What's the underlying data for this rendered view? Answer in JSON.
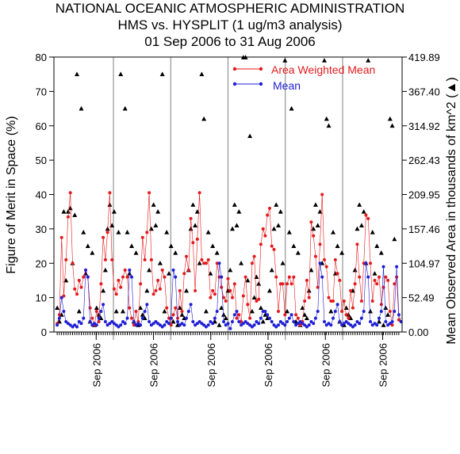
{
  "chart_data": {
    "type": "line",
    "title": [
      "NATIONAL OCEANIC ATMOSPHERIC ADMINISTRATION",
      "HMS vs. HYSPLIT (1 ug/m3 analysis)",
      "01 Sep 2006 to 31 Aug 2006"
    ],
    "ylabel_left": "Figure of Merit in Space (%)",
    "ylabel_right": "Mean Observed Area in thousands of km^2 (▲)",
    "ylim_left": [
      0,
      80
    ],
    "yticks_left": [
      "0",
      "10",
      "20",
      "30",
      "40",
      "50",
      "60",
      "70",
      "80"
    ],
    "yticks_right": [
      "0.00",
      "52.49",
      "104.97",
      "157.46",
      "209.95",
      "262.43",
      "314.92",
      "367.40",
      "419.89"
    ],
    "xtick_label": "Sep 2006",
    "legend_position": "top-right",
    "colors": {
      "awm": "#e41a1c",
      "mean": "#1f1fd6",
      "area": "#000000",
      "separator": "#808080"
    },
    "series": [
      {
        "name": "Area Weighted Mean",
        "color": "#e41a1c",
        "values": [
          2.5,
          5,
          27.5,
          10.5,
          21,
          33.5,
          40.5,
          20,
          12.5,
          11,
          15,
          13,
          16,
          18,
          16,
          7,
          4,
          2,
          6,
          3,
          14,
          27.5,
          21,
          29,
          40.5,
          21,
          12.5,
          11,
          15,
          13,
          16,
          18,
          16,
          7,
          4,
          2,
          6,
          3,
          14,
          27.5,
          21,
          29,
          40.5,
          21,
          11,
          12,
          15,
          12.5,
          18,
          16,
          7,
          4,
          2,
          5,
          7,
          4,
          12,
          6,
          17,
          22,
          18,
          33,
          26,
          12,
          27,
          40.5,
          21,
          20,
          20,
          21,
          10,
          12,
          11,
          20,
          16,
          13,
          10,
          9,
          15.5,
          12,
          10,
          14,
          4,
          5,
          3,
          10.5,
          16,
          8,
          4,
          20,
          22,
          9,
          9.5,
          25.5,
          30,
          28,
          34,
          36,
          25,
          24,
          16,
          6,
          14,
          14,
          5,
          14,
          16,
          14,
          16,
          5,
          4,
          2,
          3,
          9,
          15,
          10,
          32,
          28,
          22,
          13,
          25.5,
          40,
          21,
          19,
          10,
          9,
          9,
          21,
          17,
          15,
          6,
          9,
          5,
          4,
          12,
          7,
          14,
          25.5,
          16,
          9,
          20,
          34,
          33,
          20,
          9,
          15,
          14,
          16,
          8,
          13,
          16,
          15,
          6,
          2,
          14,
          16,
          3.5
        ]
      },
      {
        "name": "Mean",
        "color": "#1f1fd6",
        "values": [
          2,
          4,
          10,
          6,
          3,
          2.5,
          2,
          1.5,
          2,
          1.5,
          3,
          2.5,
          4,
          18,
          16,
          3,
          2,
          2.5,
          2,
          4,
          6,
          8,
          3,
          2,
          2.5,
          3,
          2.5,
          2,
          1.5,
          2,
          3,
          2.5,
          4,
          18,
          16,
          3,
          2,
          2.5,
          2,
          4,
          6,
          8,
          3,
          2,
          2.5,
          3,
          2.5,
          2,
          1.5,
          2,
          3,
          2.5,
          4,
          18,
          16,
          3,
          2,
          2.5,
          2,
          4,
          6,
          8,
          3,
          2,
          2.5,
          3,
          2.5,
          2,
          1.5,
          2,
          3,
          2.5,
          4,
          6,
          20,
          16,
          3,
          2,
          2.5,
          1,
          3,
          5,
          6,
          3,
          2,
          2.5,
          3,
          2.5,
          2,
          1.5,
          2,
          3,
          2.5,
          4,
          6,
          6,
          5,
          4,
          3,
          2,
          1.5,
          2,
          3,
          2.5,
          2,
          3,
          4,
          5,
          3,
          2,
          2.5,
          3,
          2.5,
          2,
          1.5,
          2,
          3,
          2.5,
          4,
          6,
          20,
          16,
          3,
          2,
          2.5,
          2,
          4,
          6,
          8,
          3,
          2,
          2.5,
          3,
          2.5,
          2,
          1.5,
          2,
          3,
          2.5,
          4,
          6,
          20,
          16,
          3,
          2,
          2.5,
          2,
          4,
          6,
          19,
          3,
          2,
          2.5,
          3,
          6,
          19,
          5,
          3
        ]
      },
      {
        "name": "Mean Observed Area",
        "marker": "triangle",
        "color": "#000000",
        "values": [
          7,
          3,
          5,
          35,
          15,
          35,
          36,
          20,
          34,
          75,
          6,
          65,
          29,
          17,
          25,
          3,
          23,
          2,
          7,
          5,
          4,
          12,
          18,
          30,
          37,
          31,
          35,
          6,
          29,
          75,
          6,
          65,
          29,
          17,
          25,
          3,
          23,
          2,
          7,
          5,
          4,
          12,
          18,
          30,
          37,
          31,
          35,
          20,
          75,
          6,
          29,
          17,
          25,
          3,
          23,
          2,
          7,
          5,
          4,
          12,
          18,
          30,
          37,
          31,
          35,
          20,
          75,
          62,
          6,
          29,
          17,
          25,
          3,
          23,
          2,
          7,
          5,
          4,
          12,
          18,
          30,
          37,
          31,
          35,
          20,
          80,
          80,
          15,
          57,
          6,
          10,
          16,
          14,
          7,
          3,
          5,
          4,
          12,
          18,
          30,
          37,
          31,
          35,
          20,
          79,
          6,
          29,
          65,
          25,
          3,
          23,
          2,
          7,
          5,
          4,
          12,
          18,
          30,
          37,
          31,
          35,
          20,
          79,
          62,
          60,
          6,
          29,
          17,
          25,
          3,
          23,
          2,
          7,
          5,
          4,
          12,
          18,
          30,
          37,
          31,
          35,
          20,
          79,
          6,
          29,
          17,
          25,
          3,
          23,
          2,
          7,
          5,
          62,
          60,
          27
        ]
      }
    ]
  }
}
